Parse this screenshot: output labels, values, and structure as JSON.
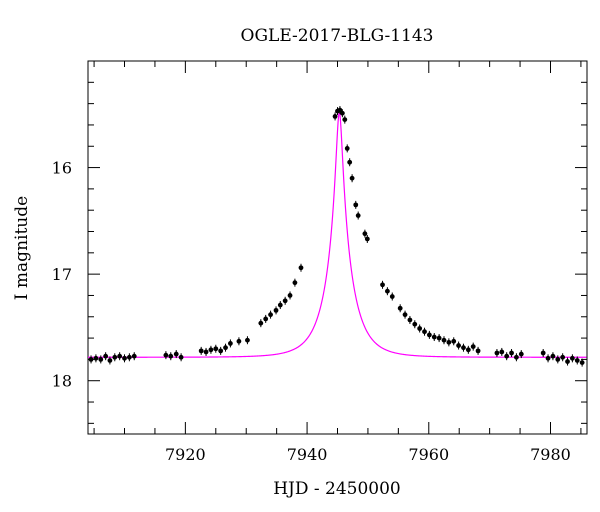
{
  "chart_data": {
    "type": "scatter",
    "title": "OGLE-2017-BLG-1143",
    "xlabel": "HJD - 2450000",
    "ylabel": "I magnitude",
    "xlim": [
      7904,
      7986
    ],
    "ylim": [
      18.5,
      15.0
    ],
    "y_inverted": true,
    "grid": false,
    "x_ticks": [
      7920,
      7940,
      7960,
      7980
    ],
    "y_ticks": [
      16,
      17,
      18
    ],
    "model_color": "#ff00ff",
    "point_color": "#000000",
    "model": {
      "name": "",
      "t0": 7945.3,
      "peak_mag": 15.48,
      "baseline_mag": 17.78,
      "tE": 3.95
    },
    "series": [
      {
        "name": "",
        "x": [
          7904.5,
          7905.3,
          7906.1,
          7906.9,
          7907.6,
          7908.4,
          7909.2,
          7910.0,
          7910.8,
          7911.6,
          7916.8,
          7917.6,
          7918.5,
          7919.3,
          7922.6,
          7923.4,
          7924.2,
          7925.0,
          7925.8,
          7926.6,
          7927.4,
          7928.8,
          7930.2,
          7932.4,
          7933.2,
          7934.0,
          7934.9,
          7935.6,
          7936.4,
          7937.2,
          7938.0,
          7939.0,
          7944.6,
          7945.0,
          7945.4,
          7945.8,
          7946.2,
          7946.6,
          7947.0,
          7947.4,
          7948.0,
          7948.4,
          7949.5,
          7949.9,
          7952.4,
          7953.2,
          7954.0,
          7955.3,
          7956.1,
          7956.9,
          7957.7,
          7958.5,
          7959.3,
          7960.1,
          7960.9,
          7961.7,
          7962.5,
          7963.3,
          7964.1,
          7964.9,
          7965.7,
          7966.5,
          7967.3,
          7968.1,
          7971.2,
          7972.0,
          7972.8,
          7973.6,
          7974.4,
          7975.2,
          7978.8,
          7979.6,
          7980.4,
          7981.2,
          7982.0,
          7982.8,
          7983.6,
          7984.4,
          7985.2
        ],
        "y": [
          17.8,
          17.79,
          17.8,
          17.77,
          17.81,
          17.78,
          17.77,
          17.79,
          17.78,
          17.77,
          17.76,
          17.77,
          17.75,
          17.78,
          17.72,
          17.73,
          17.71,
          17.7,
          17.72,
          17.69,
          17.65,
          17.63,
          17.62,
          17.46,
          17.42,
          17.38,
          17.34,
          17.29,
          17.25,
          17.2,
          17.08,
          16.94,
          15.52,
          15.47,
          15.46,
          15.49,
          15.55,
          15.82,
          15.95,
          16.1,
          16.35,
          16.45,
          16.62,
          16.67,
          17.1,
          17.16,
          17.21,
          17.32,
          17.38,
          17.43,
          17.47,
          17.51,
          17.54,
          17.57,
          17.59,
          17.6,
          17.62,
          17.64,
          17.63,
          17.67,
          17.69,
          17.71,
          17.68,
          17.72,
          17.74,
          17.73,
          17.77,
          17.74,
          17.78,
          17.75,
          17.74,
          17.79,
          17.77,
          17.8,
          17.78,
          17.82,
          17.79,
          17.81,
          17.83
        ]
      }
    ]
  }
}
